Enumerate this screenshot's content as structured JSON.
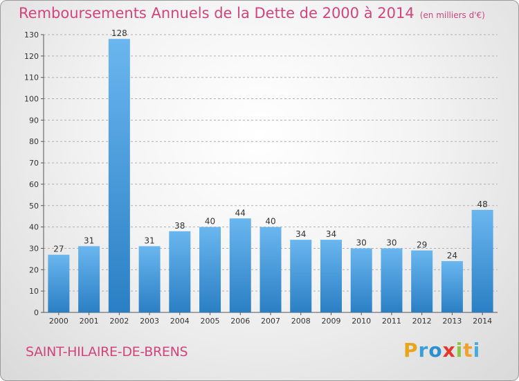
{
  "title": "Remboursements Annuels de la Dette de 2000 à 2014",
  "subtitle": "(en milliers d'€)",
  "commune": "SAINT-HILAIRE-DE-BRENS",
  "logo": {
    "letters": [
      "P",
      "r",
      "o",
      "x",
      "i",
      "t",
      "i"
    ],
    "colors": [
      "#e7a51c",
      "#3aa0d8",
      "#2d8fcf",
      "#e2382b",
      "#8cc53f",
      "#f0a12e",
      "#4aa8e0"
    ]
  },
  "colors": {
    "title": "#d2447a",
    "bar_light": "#6ab6ef",
    "bar_dark": "#2a7fc4",
    "grid": "#b0b0b0"
  },
  "chart_data": {
    "type": "bar",
    "title": "Remboursements Annuels de la Dette de 2000 à 2014",
    "subtitle": "(en milliers d'€)",
    "categories": [
      "2000",
      "2001",
      "2002",
      "2003",
      "2004",
      "2005",
      "2006",
      "2007",
      "2008",
      "2009",
      "2010",
      "2011",
      "2012",
      "2013",
      "2014"
    ],
    "values": [
      27,
      31,
      128,
      31,
      38,
      40,
      44,
      40,
      34,
      34,
      30,
      30,
      29,
      24,
      48
    ],
    "ylim": [
      0,
      130
    ],
    "yticks": [
      0,
      10,
      20,
      30,
      40,
      50,
      60,
      70,
      80,
      90,
      100,
      110,
      120,
      130
    ],
    "grid": true,
    "data_labels": true
  }
}
